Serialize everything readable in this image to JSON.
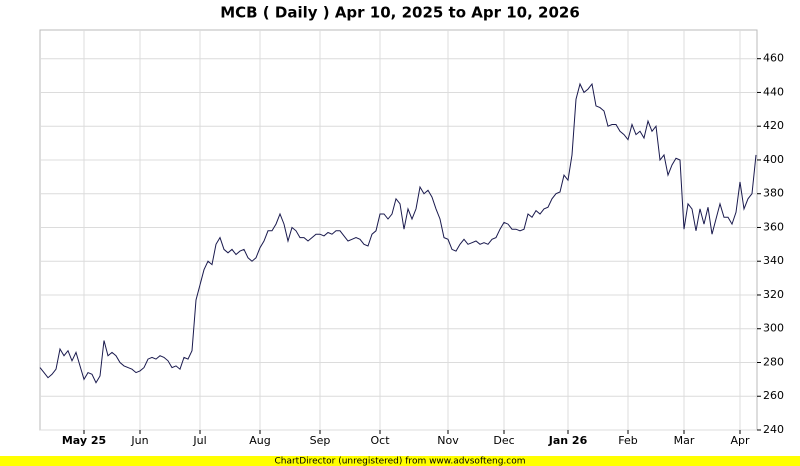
{
  "chart_data": {
    "type": "line",
    "title": "MCB ( Daily ) Apr 10, 2025 to Apr 10, 2026",
    "footer": "ChartDirector (unregistered) from www.advsofteng.com",
    "color": "#1a1a4e",
    "grid": true,
    "ylim": [
      240,
      477
    ],
    "yticks": [
      240,
      260,
      280,
      300,
      320,
      340,
      360,
      380,
      400,
      420,
      440,
      460
    ],
    "categories": [
      null,
      null,
      null,
      null,
      null,
      null,
      null,
      null,
      null,
      null,
      null,
      "May 25",
      null,
      null,
      null,
      null,
      null,
      null,
      null,
      null,
      null,
      null,
      null,
      null,
      null,
      "Jun",
      null,
      null,
      null,
      null,
      null,
      null,
      null,
      null,
      null,
      null,
      null,
      null,
      null,
      null,
      "Jul",
      null,
      null,
      null,
      null,
      null,
      null,
      null,
      null,
      null,
      null,
      null,
      null,
      null,
      null,
      "Aug",
      null,
      null,
      null,
      null,
      null,
      null,
      null,
      null,
      null,
      null,
      null,
      null,
      null,
      null,
      "Sep",
      null,
      null,
      null,
      null,
      null,
      null,
      null,
      null,
      null,
      null,
      null,
      null,
      null,
      null,
      "Oct",
      null,
      null,
      null,
      null,
      null,
      null,
      null,
      null,
      null,
      null,
      null,
      null,
      null,
      null,
      null,
      null,
      "Nov",
      null,
      null,
      null,
      null,
      null,
      null,
      null,
      null,
      null,
      null,
      null,
      null,
      null,
      "Dec",
      null,
      null,
      null,
      null,
      null,
      null,
      null,
      null,
      null,
      null,
      null,
      null,
      null,
      null,
      null,
      "Jan 26",
      null,
      null,
      null,
      null,
      null,
      null,
      null,
      null,
      null,
      null,
      null,
      null,
      null,
      null,
      "Feb",
      null,
      null,
      null,
      null,
      null,
      null,
      null,
      null,
      null,
      null,
      null,
      null,
      null,
      "Mar",
      null,
      null,
      null,
      null,
      null,
      null,
      null,
      null,
      null,
      null,
      null,
      null,
      null,
      "Apr",
      null,
      null,
      null,
      null
    ],
    "values": [
      277,
      274,
      271,
      273,
      276,
      288,
      284,
      287,
      281,
      286,
      278,
      270,
      274,
      273,
      268,
      272,
      293,
      284,
      286,
      284,
      280,
      278,
      277,
      276,
      274,
      275,
      277,
      282,
      283,
      282,
      284,
      283,
      281,
      277,
      278,
      276,
      283,
      282,
      287,
      317,
      326,
      335,
      340,
      338,
      350,
      354,
      347,
      345,
      347,
      344,
      346,
      347,
      342,
      340,
      342,
      348,
      352,
      358,
      358,
      362,
      368,
      362,
      352,
      360,
      358,
      354,
      354,
      352,
      354,
      356,
      356,
      355,
      357,
      356,
      358,
      358,
      355,
      352,
      353,
      354,
      353,
      350,
      349,
      356,
      358,
      368,
      368,
      365,
      368,
      377,
      374,
      359,
      371,
      365,
      371,
      384,
      380,
      382,
      378,
      371,
      365,
      354,
      353,
      347,
      346,
      350,
      353,
      350,
      351,
      352,
      350,
      351,
      350,
      353,
      354,
      359,
      363,
      362,
      359,
      359,
      358,
      359,
      368,
      366,
      370,
      368,
      371,
      372,
      377,
      380,
      381,
      391,
      388,
      403,
      436,
      445,
      440,
      442,
      445,
      432,
      431,
      429,
      420,
      421,
      421,
      417,
      415,
      412,
      421,
      415,
      417,
      413,
      423,
      417,
      420,
      400,
      403,
      391,
      397,
      401,
      400,
      359,
      374,
      371,
      358,
      371,
      362,
      372,
      356,
      365,
      374,
      366,
      366,
      362,
      369,
      387,
      371,
      377,
      380,
      403
    ]
  }
}
